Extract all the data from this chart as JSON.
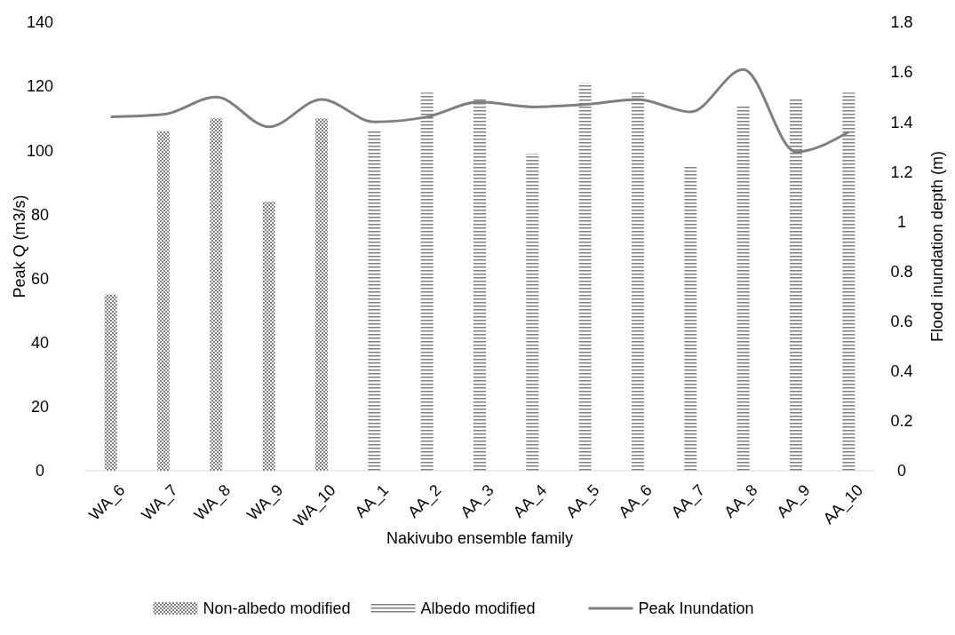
{
  "chart_data": {
    "type": "bar",
    "xlabel": "Nakivubo ensemble family",
    "ylabel": "Peak Q (m3/s)",
    "y2label": "Flood inundation depth (m)",
    "categories": [
      "WA_6",
      "WA_7",
      "WA_8",
      "WA_9",
      "WA_10",
      "AA_1",
      "AA_2",
      "AA_3",
      "AA_4",
      "AA_5",
      "AA_6",
      "AA_7",
      "AA_8",
      "AA_9",
      "AA_10"
    ],
    "series": [
      {
        "name": "Non-albedo modified",
        "color": "#808080",
        "values": [
          55,
          106,
          110,
          84,
          110,
          null,
          null,
          null,
          null,
          null,
          null,
          null,
          null,
          null,
          null
        ]
      },
      {
        "name": "Albedo modified",
        "color": "#808080",
        "values": [
          null,
          null,
          null,
          null,
          null,
          106,
          118,
          116,
          99,
          121,
          118,
          95,
          114,
          116,
          118
        ]
      },
      {
        "name": "Peak Inundation",
        "type": "line",
        "axis": "y2",
        "color": "#7f7f7f",
        "values": [
          1.42,
          1.43,
          1.5,
          1.38,
          1.49,
          1.4,
          1.42,
          1.48,
          1.46,
          1.47,
          1.49,
          1.44,
          1.61,
          1.28,
          1.36
        ]
      }
    ],
    "ylim": [
      0,
      140
    ],
    "yticks": [
      0,
      20,
      40,
      60,
      80,
      100,
      120,
      140
    ],
    "y2lim": [
      0,
      1.8
    ],
    "y2ticks": [
      0,
      0.2,
      0.4,
      0.6,
      0.8,
      1,
      1.2,
      1.4,
      1.6,
      1.8
    ],
    "legend": "bottom",
    "grid": false
  }
}
